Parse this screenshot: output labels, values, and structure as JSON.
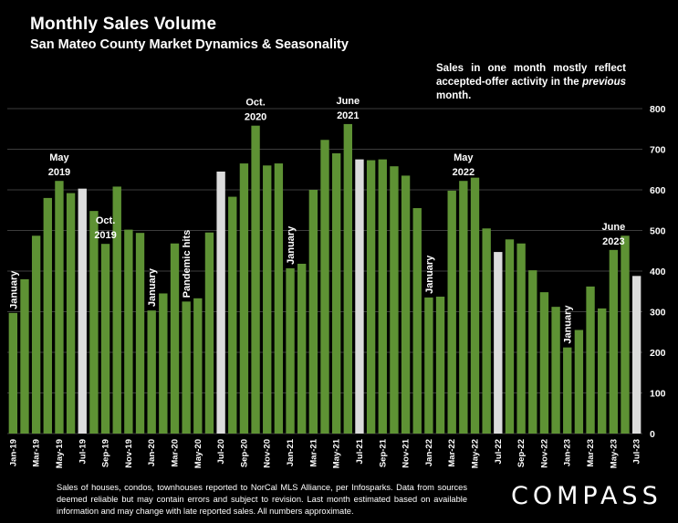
{
  "title": "Monthly Sales Volume",
  "subtitle": "San Mateo County Market Dynamics & Seasonality",
  "note": {
    "part1": "Sales in one month mostly reflect accepted-offer activity in the ",
    "emphasis": "previous",
    "part2": " month."
  },
  "footer": "Sales of houses, condos, townhouses reported to NorCal MLS Alliance, per Infosparks. Data from sources deemed reliable but may contain errors and subject to revision. Last month estimated based on available information and may change with late reported sales. All numbers approximate.",
  "logo": "COMPASS",
  "colors": {
    "background": "#000000",
    "bar": "#5e9234",
    "highlight_bar": "#dcdcdc",
    "grid": "#3c3c3c",
    "text": "#ffffff"
  },
  "chart_data": {
    "type": "bar",
    "y_axis_position": "right",
    "ylim": [
      0,
      800
    ],
    "yticks": [
      0,
      100,
      200,
      300,
      400,
      500,
      600,
      700,
      800
    ],
    "grid": true,
    "categories": [
      "Jan-19",
      "Feb-19",
      "Mar-19",
      "Apr-19",
      "May-19",
      "Jun-19",
      "Jul-19",
      "Aug-19",
      "Sep-19",
      "Oct-19",
      "Nov-19",
      "Dec-19",
      "Jan-20",
      "Feb-20",
      "Mar-20",
      "Apr-20",
      "May-20",
      "Jun-20",
      "Jul-20",
      "Aug-20",
      "Sep-20",
      "Oct-20",
      "Nov-20",
      "Dec-20",
      "Jan-21",
      "Feb-21",
      "Mar-21",
      "Apr-21",
      "May-21",
      "Jun-21",
      "Jul-21",
      "Aug-21",
      "Sep-21",
      "Oct-21",
      "Nov-21",
      "Dec-21",
      "Jan-22",
      "Feb-22",
      "Mar-22",
      "Apr-22",
      "May-22",
      "Jun-22",
      "Jul-22",
      "Aug-22",
      "Sep-22",
      "Oct-22",
      "Nov-22",
      "Dec-22",
      "Jan-23",
      "Feb-23",
      "Mar-23",
      "Apr-23",
      "May-23",
      "Jun-23",
      "Jul-23"
    ],
    "values": [
      297,
      380,
      487,
      580,
      622,
      592,
      603,
      548,
      467,
      608,
      502,
      494,
      303,
      345,
      468,
      325,
      333,
      495,
      645,
      583,
      665,
      758,
      660,
      665,
      407,
      418,
      600,
      723,
      690,
      762,
      675,
      673,
      675,
      658,
      635,
      555,
      335,
      337,
      598,
      622,
      630,
      505,
      447,
      478,
      468,
      402,
      348,
      312,
      212,
      255,
      362,
      308,
      452,
      487,
      388
    ],
    "highlighted": [
      "Jul-19",
      "Jul-20",
      "Jul-21",
      "Jul-22",
      "Jul-23"
    ],
    "x_tick_labels": [
      "Jan-19",
      "Mar-19",
      "May-19",
      "Jul-19",
      "Sep-19",
      "Nov-19",
      "Jan-20",
      "Mar-20",
      "May-20",
      "Jul-20",
      "Sep-20",
      "Nov-20",
      "Jan-21",
      "Mar-21",
      "May-21",
      "Jul-21",
      "Sep-21",
      "Nov-21",
      "Jan-22",
      "Mar-22",
      "May-22",
      "Jul-22",
      "Sep-22",
      "Nov-22",
      "Jan-23",
      "Mar-23",
      "May-23",
      "Jul-23"
    ],
    "annotations": [
      {
        "category": "Jan-19",
        "text": "January",
        "orientation": "vertical"
      },
      {
        "category": "May-19",
        "text": "May\n2019",
        "orientation": "horizontal"
      },
      {
        "category": "Sep-19",
        "text": "Oct.\n2019",
        "orientation": "horizontal"
      },
      {
        "category": "Jan-20",
        "text": "January",
        "orientation": "vertical"
      },
      {
        "category": "Apr-20",
        "text": "Pandemic hits",
        "orientation": "vertical"
      },
      {
        "category": "Oct-20",
        "text": "Oct.\n2020",
        "orientation": "horizontal"
      },
      {
        "category": "Jan-21",
        "text": "January",
        "orientation": "vertical"
      },
      {
        "category": "Jun-21",
        "text": "June\n2021",
        "orientation": "horizontal"
      },
      {
        "category": "Jan-22",
        "text": "January",
        "orientation": "vertical"
      },
      {
        "category": "Apr-22",
        "text": "May\n2022",
        "orientation": "horizontal"
      },
      {
        "category": "Jan-23",
        "text": "January",
        "orientation": "vertical"
      },
      {
        "category": "May-23",
        "text": "June\n2023",
        "orientation": "horizontal"
      }
    ]
  }
}
